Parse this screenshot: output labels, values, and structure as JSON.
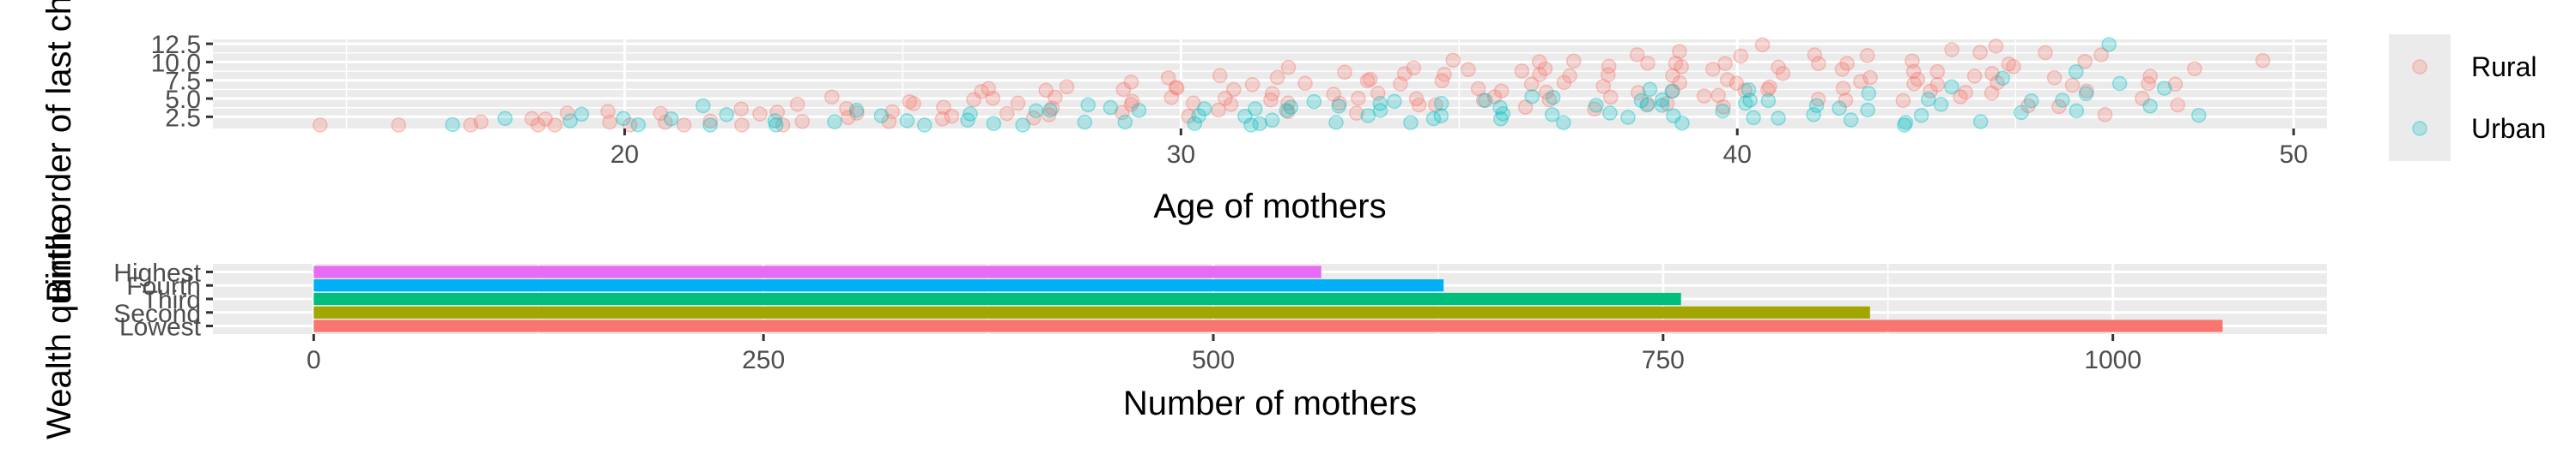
{
  "chart_data": [
    {
      "type": "scatter",
      "title": "",
      "xlabel": "Age of mothers",
      "ylabel": "Birth order of last child",
      "xlim": [
        12.6,
        50.6
      ],
      "ylim": [
        0.9,
        13.1
      ],
      "x_ticks": [
        20,
        30,
        40,
        50
      ],
      "y_ticks": [
        2.5,
        5.0,
        7.5,
        10.0,
        12.5
      ],
      "x_tick_labels": [
        "20",
        "30",
        "40",
        "50"
      ],
      "y_tick_labels": [
        "2.5",
        "5.0",
        "7.5",
        "10.0",
        "12.5"
      ],
      "grid": true,
      "point_alpha": 0.25,
      "legend": {
        "position": "right",
        "title": ""
      },
      "series": [
        {
          "name": "Rural",
          "color": "#F8766D",
          "points": [
            [
              15,
              1
            ],
            [
              16,
              1
            ],
            [
              17,
              1
            ],
            [
              17,
              2
            ],
            [
              18,
              1
            ],
            [
              18,
              2
            ],
            [
              19,
              1
            ],
            [
              19,
              2
            ],
            [
              19,
              3
            ],
            [
              20,
              1
            ],
            [
              20,
              2
            ],
            [
              20,
              3
            ],
            [
              21,
              1
            ],
            [
              21,
              2
            ],
            [
              21,
              3
            ],
            [
              22,
              1
            ],
            [
              22,
              2
            ],
            [
              22,
              3
            ],
            [
              22,
              4
            ],
            [
              23,
              1
            ],
            [
              23,
              2
            ],
            [
              23,
              3
            ],
            [
              23,
              4
            ],
            [
              24,
              2
            ],
            [
              24,
              3
            ],
            [
              24,
              4
            ],
            [
              24,
              5
            ],
            [
              25,
              2
            ],
            [
              25,
              3
            ],
            [
              25,
              4
            ],
            [
              25,
              5
            ],
            [
              26,
              2
            ],
            [
              26,
              3
            ],
            [
              26,
              4
            ],
            [
              26,
              5
            ],
            [
              26,
              6
            ],
            [
              27,
              2
            ],
            [
              27,
              3
            ],
            [
              27,
              4
            ],
            [
              27,
              5
            ],
            [
              27,
              6
            ],
            [
              28,
              3
            ],
            [
              28,
              4
            ],
            [
              28,
              5
            ],
            [
              28,
              6
            ],
            [
              28,
              7
            ],
            [
              29,
              3
            ],
            [
              29,
              4
            ],
            [
              29,
              5
            ],
            [
              29,
              6
            ],
            [
              29,
              7
            ],
            [
              30,
              3
            ],
            [
              30,
              4
            ],
            [
              30,
              5
            ],
            [
              30,
              6
            ],
            [
              30,
              7
            ],
            [
              30,
              8
            ],
            [
              31,
              3
            ],
            [
              31,
              4
            ],
            [
              31,
              5
            ],
            [
              31,
              6
            ],
            [
              31,
              7
            ],
            [
              31,
              8
            ],
            [
              32,
              3
            ],
            [
              32,
              4
            ],
            [
              32,
              5
            ],
            [
              32,
              6
            ],
            [
              32,
              7
            ],
            [
              32,
              8
            ],
            [
              32,
              9
            ],
            [
              33,
              3
            ],
            [
              33,
              4
            ],
            [
              33,
              5
            ],
            [
              33,
              6
            ],
            [
              33,
              7
            ],
            [
              33,
              8
            ],
            [
              33,
              9
            ],
            [
              34,
              4
            ],
            [
              34,
              5
            ],
            [
              34,
              6
            ],
            [
              34,
              7
            ],
            [
              34,
              8
            ],
            [
              34,
              9
            ],
            [
              35,
              4
            ],
            [
              35,
              5
            ],
            [
              35,
              6
            ],
            [
              35,
              7
            ],
            [
              35,
              8
            ],
            [
              35,
              9
            ],
            [
              35,
              10
            ],
            [
              36,
              4
            ],
            [
              36,
              5
            ],
            [
              36,
              6
            ],
            [
              36,
              7
            ],
            [
              36,
              8
            ],
            [
              36,
              9
            ],
            [
              36,
              10
            ],
            [
              37,
              4
            ],
            [
              37,
              5
            ],
            [
              37,
              6
            ],
            [
              37,
              7
            ],
            [
              37,
              8
            ],
            [
              37,
              9
            ],
            [
              37,
              10
            ],
            [
              38,
              4
            ],
            [
              38,
              5
            ],
            [
              38,
              6
            ],
            [
              38,
              7
            ],
            [
              38,
              8
            ],
            [
              38,
              9
            ],
            [
              38,
              10
            ],
            [
              38,
              11
            ],
            [
              39,
              4
            ],
            [
              39,
              5
            ],
            [
              39,
              6
            ],
            [
              39,
              7
            ],
            [
              39,
              8
            ],
            [
              39,
              9
            ],
            [
              39,
              10
            ],
            [
              39,
              11
            ],
            [
              40,
              4
            ],
            [
              40,
              5
            ],
            [
              40,
              6
            ],
            [
              40,
              7
            ],
            [
              40,
              8
            ],
            [
              40,
              9
            ],
            [
              40,
              10
            ],
            [
              40,
              11
            ],
            [
              40,
              12
            ],
            [
              41,
              5
            ],
            [
              41,
              6
            ],
            [
              41,
              7
            ],
            [
              41,
              8
            ],
            [
              41,
              9
            ],
            [
              41,
              10
            ],
            [
              41,
              11
            ],
            [
              42,
              5
            ],
            [
              42,
              6
            ],
            [
              42,
              7
            ],
            [
              42,
              8
            ],
            [
              42,
              9
            ],
            [
              42,
              10
            ],
            [
              42,
              11
            ],
            [
              43,
              5
            ],
            [
              43,
              6
            ],
            [
              43,
              7
            ],
            [
              43,
              8
            ],
            [
              43,
              9
            ],
            [
              43,
              10
            ],
            [
              44,
              5
            ],
            [
              44,
              6
            ],
            [
              44,
              7
            ],
            [
              44,
              8
            ],
            [
              44,
              9
            ],
            [
              44,
              11
            ],
            [
              44,
              12
            ],
            [
              45,
              4
            ],
            [
              45,
              6
            ],
            [
              45,
              7
            ],
            [
              45,
              8
            ],
            [
              45,
              9
            ],
            [
              45,
              10
            ],
            [
              45,
              12
            ],
            [
              46,
              4
            ],
            [
              46,
              6
            ],
            [
              46,
              7
            ],
            [
              46,
              8
            ],
            [
              46,
              10
            ],
            [
              46,
              11
            ],
            [
              47,
              3
            ],
            [
              47,
              5
            ],
            [
              47,
              7
            ],
            [
              47,
              8
            ],
            [
              47,
              11
            ],
            [
              48,
              4
            ],
            [
              48,
              7
            ],
            [
              48,
              9
            ],
            [
              49,
              10
            ]
          ]
        },
        {
          "name": "Urban",
          "color": "#00BFC4",
          "points": [
            [
              17,
              1
            ],
            [
              18,
              2
            ],
            [
              19,
              2
            ],
            [
              19,
              3
            ],
            [
              20,
              1
            ],
            [
              20,
              2
            ],
            [
              21,
              2
            ],
            [
              21,
              4
            ],
            [
              22,
              1
            ],
            [
              22,
              3
            ],
            [
              23,
              1
            ],
            [
              23,
              2
            ],
            [
              24,
              2
            ],
            [
              24,
              3
            ],
            [
              25,
              1
            ],
            [
              25,
              2
            ],
            [
              25,
              3
            ],
            [
              26,
              2
            ],
            [
              26,
              3
            ],
            [
              27,
              1
            ],
            [
              27,
              2
            ],
            [
              27,
              3
            ],
            [
              28,
              2
            ],
            [
              28,
              3
            ],
            [
              28,
              4
            ],
            [
              29,
              2
            ],
            [
              29,
              3
            ],
            [
              29,
              4
            ],
            [
              30,
              2
            ],
            [
              30,
              3
            ],
            [
              30,
              4
            ],
            [
              31,
              1
            ],
            [
              31,
              2
            ],
            [
              31,
              3
            ],
            [
              31,
              4
            ],
            [
              32,
              2
            ],
            [
              32,
              3
            ],
            [
              32,
              4
            ],
            [
              32,
              5
            ],
            [
              33,
              2
            ],
            [
              33,
              3
            ],
            [
              33,
              4
            ],
            [
              34,
              2
            ],
            [
              34,
              3
            ],
            [
              34,
              4
            ],
            [
              34,
              5
            ],
            [
              35,
              2
            ],
            [
              35,
              3
            ],
            [
              35,
              4
            ],
            [
              35,
              5
            ],
            [
              36,
              2
            ],
            [
              36,
              3
            ],
            [
              36,
              4
            ],
            [
              36,
              5
            ],
            [
              37,
              2
            ],
            [
              37,
              3
            ],
            [
              37,
              4
            ],
            [
              37,
              5
            ],
            [
              38,
              2
            ],
            [
              38,
              3
            ],
            [
              38,
              4
            ],
            [
              38,
              5
            ],
            [
              38,
              6
            ],
            [
              39,
              2
            ],
            [
              39,
              3
            ],
            [
              39,
              4
            ],
            [
              39,
              5
            ],
            [
              39,
              6
            ],
            [
              40,
              2
            ],
            [
              40,
              3
            ],
            [
              40,
              4
            ],
            [
              40,
              5
            ],
            [
              40,
              6
            ],
            [
              41,
              2
            ],
            [
              41,
              3
            ],
            [
              41,
              4
            ],
            [
              41,
              5
            ],
            [
              42,
              2
            ],
            [
              42,
              3
            ],
            [
              42,
              4
            ],
            [
              42,
              6
            ],
            [
              43,
              1
            ],
            [
              43,
              2
            ],
            [
              43,
              3
            ],
            [
              43,
              5
            ],
            [
              44,
              2
            ],
            [
              44,
              4
            ],
            [
              44,
              7
            ],
            [
              45,
              3
            ],
            [
              45,
              5
            ],
            [
              45,
              8
            ],
            [
              46,
              3
            ],
            [
              46,
              5
            ],
            [
              46,
              6
            ],
            [
              46,
              9
            ],
            [
              47,
              4
            ],
            [
              47,
              7
            ],
            [
              47,
              13
            ],
            [
              48,
              3
            ],
            [
              48,
              6
            ]
          ]
        }
      ]
    },
    {
      "type": "bar",
      "orientation": "horizontal",
      "title": "",
      "xlabel": "Number of mothers",
      "ylabel": "Wealth quintile",
      "xlim": [
        -56,
        1119
      ],
      "x_ticks": [
        0,
        250,
        500,
        750,
        1000
      ],
      "x_tick_labels": [
        "0",
        "250",
        "500",
        "750",
        "1000"
      ],
      "grid": true,
      "legend": "none",
      "categories": [
        "Lowest",
        "Second",
        "Third",
        "Fourth",
        "Highest"
      ],
      "values": [
        1061,
        865,
        760,
        628,
        560
      ],
      "colors": [
        "#F8766D",
        "#A3A500",
        "#00BF7D",
        "#00B0F6",
        "#E76BF3"
      ]
    }
  ]
}
